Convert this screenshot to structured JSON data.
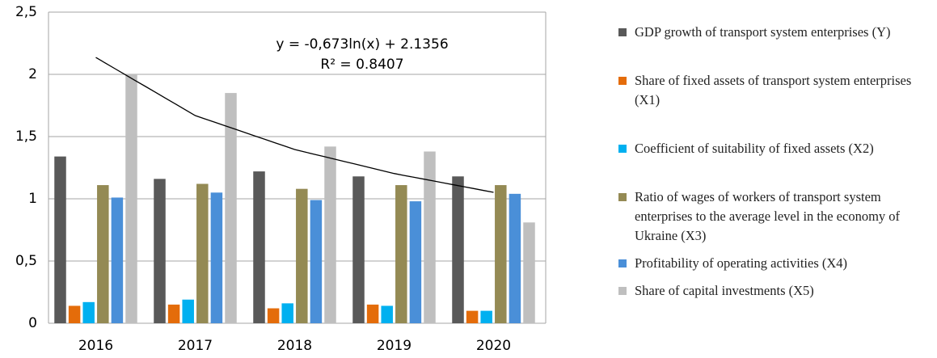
{
  "chart_data": {
    "type": "bar",
    "categories": [
      "2016",
      "2017",
      "2018",
      "2019",
      "2020"
    ],
    "series": [
      {
        "name": "GDP growth of transport system enterprises (Y)",
        "color": "#595959",
        "values": [
          1.34,
          1.16,
          1.22,
          1.18,
          1.18
        ]
      },
      {
        "name": "Share of fixed assets of transport system enterprises (X1)",
        "color": "#e46c0a",
        "values": [
          0.14,
          0.15,
          0.12,
          0.15,
          0.1
        ]
      },
      {
        "name": "Coefficient of suitability of fixed assets (X2)",
        "color": "#00b0f0",
        "values": [
          0.17,
          0.19,
          0.16,
          0.14,
          0.1
        ]
      },
      {
        "name": "Ratio of wages of workers of transport system enterprises to the average level in the economy of Ukraine (X3)",
        "color": "#948a54",
        "values": [
          1.11,
          1.12,
          1.08,
          1.11,
          1.11
        ]
      },
      {
        "name": "Profitability of operating activities (X4)",
        "color": "#4a8fd8",
        "values": [
          1.01,
          1.05,
          0.99,
          0.98,
          1.04
        ]
      },
      {
        "name": "Share of capital investments (X5)",
        "color": "#bfbfbf",
        "values": [
          2.0,
          1.85,
          1.42,
          1.38,
          0.81
        ]
      }
    ],
    "trendline": {
      "equation": "y = -0,673ln(x) + 2.1356",
      "r_squared": "R² = 0.8407",
      "color": "#000000",
      "values": [
        2.1356,
        1.669,
        1.396,
        1.203,
        1.052
      ]
    },
    "ylim": [
      0,
      2.5
    ],
    "yticks": [
      0,
      {
        "value": 0.5,
        "label": "0,5"
      },
      1,
      {
        "value": 1.5,
        "label": "1,5"
      },
      2,
      {
        "value": 2.5,
        "label": "2,5"
      }
    ],
    "grid": true
  }
}
